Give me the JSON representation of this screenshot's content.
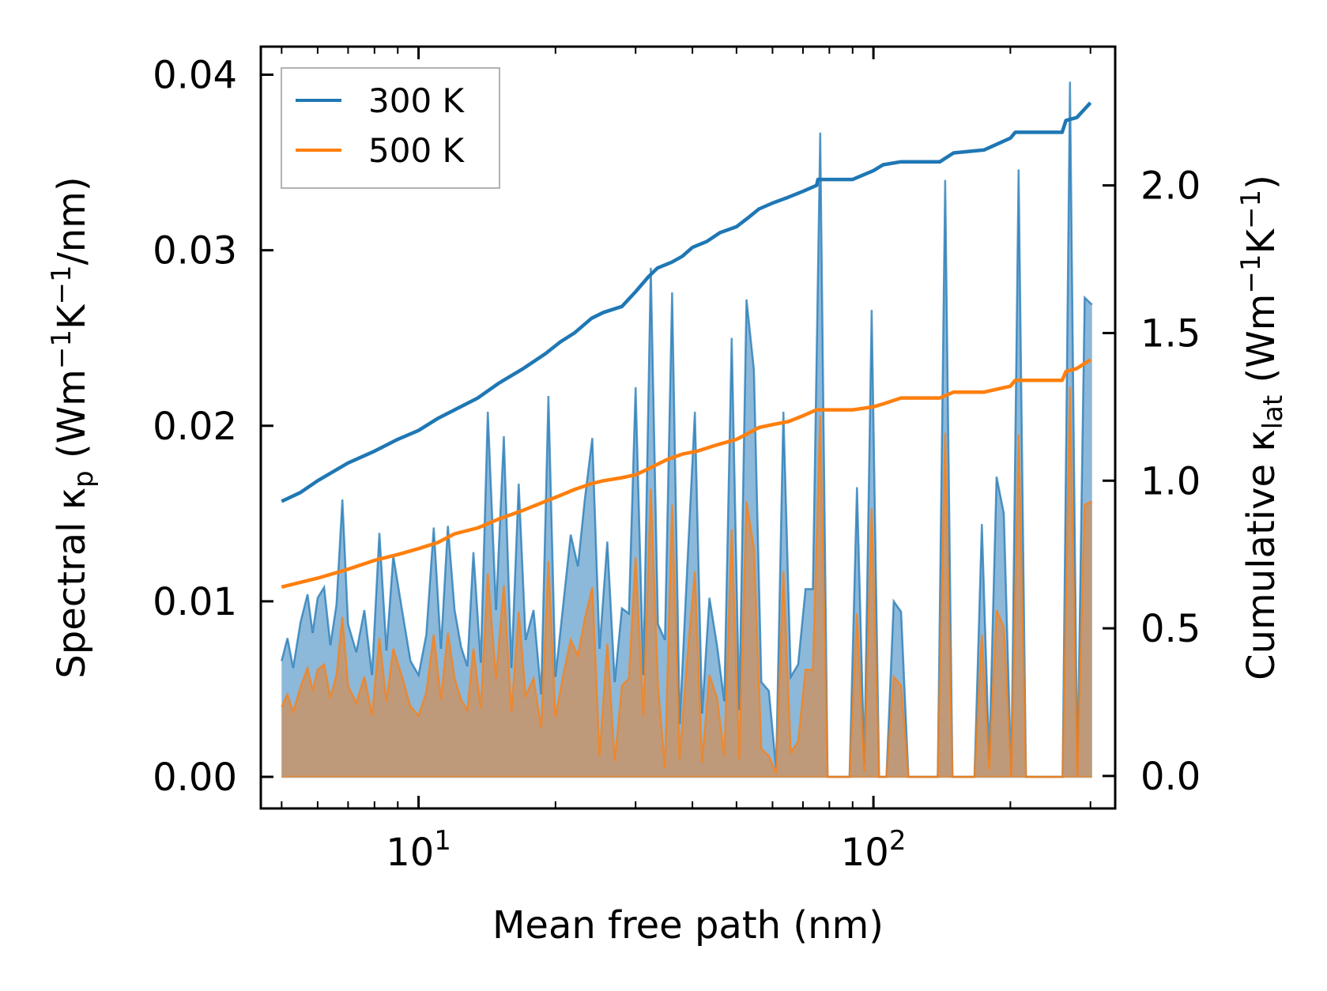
{
  "chart_data": {
    "type": "line",
    "title": "",
    "xlabel": "Mean free path (nm)",
    "ylabel_left": "Spectral κp (Wm−1K−1/nm)",
    "ylabel_right": "Cumulative κlat (Wm−1K−1)",
    "x_scale": "log",
    "xlim": [
      4.5,
      340
    ],
    "ylim_left": [
      -0.0018,
      0.0416
    ],
    "ylim_right": [
      -0.11,
      2.47
    ],
    "x_tick_labels": [
      {
        "value": 10,
        "base": "10",
        "exp": "1"
      },
      {
        "value": 100,
        "base": "10",
        "exp": "2"
      }
    ],
    "y_left_ticks": [
      0.0,
      0.01,
      0.02,
      0.03,
      0.04
    ],
    "y_left_tick_labels": [
      "0.00",
      "0.01",
      "0.02",
      "0.03",
      "0.04"
    ],
    "y_right_ticks": [
      0.0,
      0.5,
      1.0,
      1.5,
      2.0
    ],
    "y_right_tick_labels": [
      "0.0",
      "0.5",
      "1.0",
      "1.5",
      "2.0"
    ],
    "legend": {
      "position": "top-left",
      "entries": [
        {
          "label": "300 K",
          "color": "#1f77b4"
        },
        {
          "label": "500 K",
          "color": "#ff7f0e"
        }
      ]
    },
    "series": [
      {
        "name": "300 K",
        "color": "#1f77b4",
        "fill_color": "#7fb0d6",
        "spectral": {
          "axis": "left",
          "x": [
            5.0,
            5.15,
            5.3,
            5.5,
            5.7,
            5.85,
            6.0,
            6.2,
            6.4,
            6.6,
            6.8,
            7.0,
            7.3,
            7.6,
            7.9,
            8.2,
            8.5,
            8.8,
            9.2,
            9.6,
            10.0,
            10.4,
            10.8,
            11.2,
            11.6,
            12.0,
            12.4,
            12.8,
            13.2,
            13.7,
            14.2,
            14.8,
            15.4,
            16.0,
            16.6,
            17.2,
            17.9,
            18.6,
            19.3,
            20.0,
            20.8,
            21.6,
            22.4,
            23.2,
            24.1,
            25.0,
            26.0,
            27.0,
            28.0,
            29.0,
            30.0,
            31.2,
            32.4,
            33.6,
            34.8,
            36.1,
            37.5,
            39.0,
            40.5,
            42.0,
            43.6,
            45.3,
            47.0,
            48.8,
            50.7,
            52.6,
            54.6,
            56.7,
            58.9,
            61.1,
            63.4,
            65.8,
            68.3,
            70.9,
            73.6,
            76.4,
            79.3,
            82.3,
            85.4,
            88.6,
            92.0,
            95.5,
            99.1,
            102.9,
            106.8,
            110.8,
            115.0,
            119.4,
            123.9,
            128.6,
            133.5,
            138.5,
            143.8,
            149.2,
            154.9,
            160.7,
            166.8,
            173.1,
            179.7,
            186.5,
            193.5,
            200.9,
            208.5,
            216.4,
            224.6,
            233.1,
            241.9,
            251.1,
            260.6,
            270.5,
            280.7,
            291.4,
            302.4
          ],
          "y": [
            0.0066,
            0.0079,
            0.0062,
            0.0088,
            0.0104,
            0.0082,
            0.0102,
            0.0108,
            0.0075,
            0.0098,
            0.0158,
            0.0087,
            0.0071,
            0.0095,
            0.0058,
            0.0139,
            0.0072,
            0.0126,
            0.0095,
            0.0066,
            0.0058,
            0.0081,
            0.0142,
            0.0073,
            0.0143,
            0.0095,
            0.0074,
            0.0063,
            0.0128,
            0.0065,
            0.0208,
            0.0095,
            0.0194,
            0.0062,
            0.0167,
            0.0078,
            0.0095,
            0.0047,
            0.0217,
            0.0057,
            0.0098,
            0.0138,
            0.012,
            0.0158,
            0.0193,
            0.0073,
            0.0134,
            0.0054,
            0.0096,
            0.0093,
            0.0222,
            0.0058,
            0.029,
            0.0087,
            0.0078,
            0.0276,
            0.003,
            0.0122,
            0.0208,
            0.0036,
            0.0102,
            0.0075,
            0.0043,
            0.025,
            0.0038,
            0.0272,
            0.0232,
            0.0054,
            0.0049,
            0.0005,
            0.0208,
            0.0057,
            0.0064,
            0.0107,
            0.0107,
            0.0367,
            0.0,
            0.0,
            0.0,
            0.0,
            0.0165,
            0.0008,
            0.0266,
            0.0,
            0.0,
            0.01,
            0.0094,
            0.0,
            0.0,
            0.0,
            0.0,
            0.0,
            0.034,
            0.0,
            0.0,
            0.0,
            0.0,
            0.0144,
            0.001,
            0.0171,
            0.015,
            0.0,
            0.0346,
            0.0,
            0.0,
            0.0,
            0.0,
            0.0,
            0.0,
            0.0396,
            0.0,
            0.0273,
            0.0269
          ]
        },
        "cumulative": {
          "axis": "right",
          "x": [
            5.0,
            5.5,
            6.0,
            7.0,
            8.0,
            9.0,
            10.0,
            11.0,
            12.0,
            13.5,
            15.0,
            17.0,
            19.0,
            20.5,
            22.0,
            24.0,
            25.5,
            28.0,
            30.0,
            32.0,
            33.5,
            36.0,
            38.0,
            40.0,
            43.0,
            46.0,
            50.0,
            53.0,
            56.0,
            60.0,
            65.0,
            70.0,
            75.0,
            75.5,
            90.0,
            100.0,
            105.0,
            115.0,
            140.0,
            150.0,
            175.0,
            200.0,
            205.0,
            260.0,
            265.0,
            280.0,
            300.0
          ],
          "y": [
            0.93,
            0.96,
            1.0,
            1.06,
            1.1,
            1.14,
            1.17,
            1.21,
            1.24,
            1.28,
            1.33,
            1.38,
            1.43,
            1.47,
            1.5,
            1.55,
            1.57,
            1.59,
            1.64,
            1.69,
            1.72,
            1.74,
            1.76,
            1.79,
            1.81,
            1.84,
            1.86,
            1.89,
            1.92,
            1.94,
            1.96,
            1.98,
            2.0,
            2.02,
            2.02,
            2.05,
            2.07,
            2.08,
            2.08,
            2.11,
            2.12,
            2.16,
            2.18,
            2.18,
            2.22,
            2.23,
            2.28
          ]
        }
      },
      {
        "name": "500 K",
        "color": "#ff7f0e",
        "fill_color": "#c4976f",
        "spectral": {
          "axis": "left",
          "x": [
            5.0,
            5.15,
            5.3,
            5.5,
            5.7,
            5.85,
            6.0,
            6.2,
            6.4,
            6.6,
            6.8,
            7.0,
            7.3,
            7.6,
            7.9,
            8.2,
            8.5,
            8.8,
            9.2,
            9.6,
            10.0,
            10.4,
            10.8,
            11.2,
            11.6,
            12.0,
            12.4,
            12.8,
            13.2,
            13.7,
            14.2,
            14.8,
            15.4,
            16.0,
            16.6,
            17.2,
            17.9,
            18.6,
            19.3,
            20.0,
            20.8,
            21.6,
            22.4,
            23.2,
            24.1,
            25.0,
            26.0,
            27.0,
            28.0,
            29.0,
            30.0,
            31.2,
            32.4,
            33.6,
            34.8,
            36.1,
            37.5,
            39.0,
            40.5,
            42.0,
            43.6,
            45.3,
            47.0,
            48.8,
            50.7,
            52.6,
            54.6,
            56.7,
            58.9,
            61.1,
            63.4,
            65.8,
            68.3,
            70.9,
            73.6,
            76.4,
            79.3,
            82.3,
            85.4,
            88.6,
            92.0,
            95.5,
            99.1,
            102.9,
            106.8,
            110.8,
            115.0,
            119.4,
            123.9,
            128.6,
            133.5,
            138.5,
            143.8,
            149.2,
            154.9,
            160.7,
            166.8,
            173.1,
            179.7,
            186.5,
            193.5,
            200.9,
            208.5,
            216.4,
            224.6,
            233.1,
            241.9,
            251.1,
            260.6,
            270.5,
            280.7,
            291.4,
            302.4
          ],
          "y": [
            0.004,
            0.0047,
            0.0037,
            0.0051,
            0.0062,
            0.0049,
            0.0061,
            0.0064,
            0.0045,
            0.0058,
            0.0091,
            0.0052,
            0.0042,
            0.0057,
            0.0035,
            0.0079,
            0.0043,
            0.0073,
            0.0057,
            0.004,
            0.0035,
            0.0048,
            0.0081,
            0.0044,
            0.0082,
            0.0056,
            0.0044,
            0.0038,
            0.0073,
            0.0039,
            0.0116,
            0.0056,
            0.0109,
            0.0037,
            0.0094,
            0.0046,
            0.0056,
            0.0028,
            0.0123,
            0.0034,
            0.0058,
            0.0078,
            0.0069,
            0.009,
            0.0108,
            0.0012,
            0.0076,
            0.0009,
            0.0052,
            0.0056,
            0.0125,
            0.0035,
            0.0164,
            0.0052,
            0.0005,
            0.0155,
            0.001,
            0.0069,
            0.0117,
            0.0008,
            0.0058,
            0.0045,
            0.0012,
            0.0141,
            0.001,
            0.0157,
            0.013,
            0.0016,
            0.0012,
            0.0002,
            0.0117,
            0.0014,
            0.002,
            0.0061,
            0.0061,
            0.0206,
            0.0,
            0.0,
            0.0,
            0.0,
            0.0093,
            0.0003,
            0.0153,
            0.0,
            0.0,
            0.0057,
            0.0052,
            0.0,
            0.0,
            0.0,
            0.0,
            0.0,
            0.0196,
            0.0,
            0.0,
            0.0,
            0.0,
            0.0081,
            0.0004,
            0.0095,
            0.0085,
            0.0,
            0.0195,
            0.0,
            0.0,
            0.0,
            0.0,
            0.0,
            0.0,
            0.0222,
            0.0,
            0.0155,
            0.0157
          ]
        },
        "cumulative": {
          "axis": "right",
          "x": [
            5.0,
            6.0,
            7.0,
            8.0,
            9.0,
            10.0,
            11.0,
            12.0,
            13.5,
            15.0,
            17.0,
            19.0,
            20.5,
            22.0,
            24.0,
            25.5,
            28.0,
            30.0,
            32.0,
            35.0,
            38.0,
            41.0,
            45.0,
            50.0,
            53.0,
            56.0,
            60.0,
            65.0,
            70.0,
            75.0,
            90.0,
            100.0,
            105.0,
            115.0,
            140.0,
            150.0,
            175.0,
            200.0,
            205.0,
            260.0,
            265.0,
            280.0,
            300.0
          ],
          "y": [
            0.64,
            0.67,
            0.7,
            0.73,
            0.75,
            0.77,
            0.79,
            0.82,
            0.84,
            0.87,
            0.9,
            0.93,
            0.95,
            0.97,
            0.99,
            1.0,
            1.01,
            1.02,
            1.04,
            1.07,
            1.09,
            1.1,
            1.12,
            1.14,
            1.16,
            1.18,
            1.19,
            1.2,
            1.22,
            1.24,
            1.24,
            1.25,
            1.26,
            1.28,
            1.28,
            1.3,
            1.3,
            1.32,
            1.34,
            1.34,
            1.37,
            1.38,
            1.41
          ]
        }
      }
    ]
  }
}
